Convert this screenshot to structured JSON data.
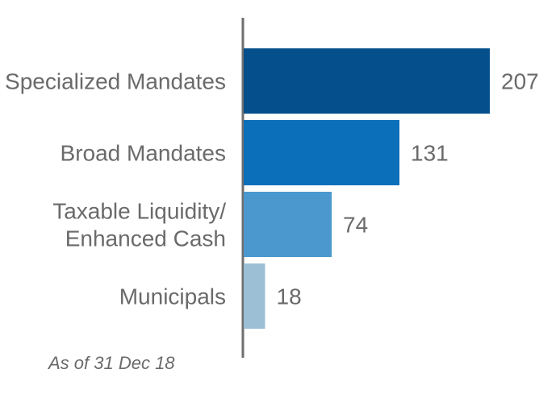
{
  "chart_data": {
    "type": "bar",
    "orientation": "horizontal",
    "categories": [
      "Specialized Mandates",
      "Broad Mandates",
      "Taxable Liquidity/\nEnhanced Cash",
      "Municipals"
    ],
    "values": [
      207,
      131,
      74,
      18
    ],
    "value_labels": [
      "207",
      "131",
      "74",
      "18"
    ],
    "bar_colors": [
      "#044f8c",
      "#0b6fb9",
      "#4b98cf",
      "#9dbfd6"
    ],
    "axis_color": "#6e6e6e",
    "text_color": "#6a6a6a",
    "grid": false,
    "legend": "none",
    "xlim": [
      0,
      207
    ],
    "footnote": "As of 31 Dec 18"
  }
}
